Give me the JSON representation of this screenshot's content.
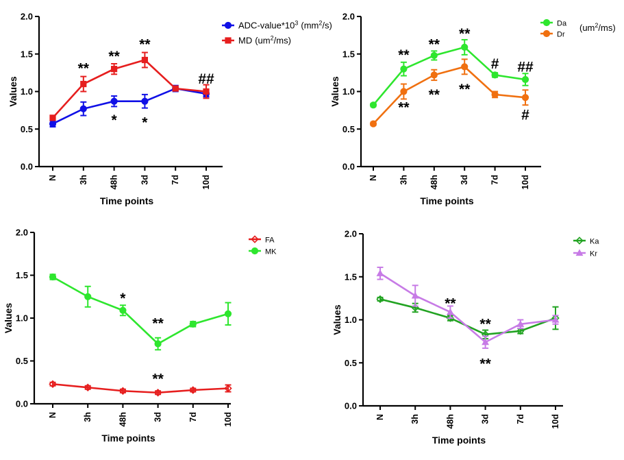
{
  "chart_data": [
    {
      "type": "line",
      "panel": "top-left",
      "categories": [
        "N",
        "3h",
        "48h",
        "3d",
        "7d",
        "10d"
      ],
      "xlabel": "Time points",
      "ylabel": "Values",
      "ylim": [
        0,
        2.0
      ],
      "yticks": [
        "0.0",
        "0.5",
        "1.0",
        "1.5",
        "2.0"
      ],
      "legend_position": "top-right",
      "series": [
        {
          "name": "ADC-value*10",
          "name_sup": "3",
          "name_unit": "(mm",
          "name_unit_sup": "2",
          "name_unit_end": "/s)",
          "marker": "circle",
          "color": "#1010e6",
          "values": [
            0.57,
            0.77,
            0.87,
            0.87,
            1.04,
            0.97
          ],
          "errors": [
            0.04,
            0.09,
            0.07,
            0.09,
            0.04,
            0.04
          ]
        },
        {
          "name": "MD",
          "name_sup": "",
          "name_unit": "(um",
          "name_unit_sup": "2",
          "name_unit_end": "/ms)",
          "marker": "square",
          "color": "#e61e1e",
          "values": [
            0.65,
            1.1,
            1.3,
            1.42,
            1.04,
            1.0
          ],
          "errors": [
            0.03,
            0.1,
            0.07,
            0.1,
            0.03,
            0.09
          ]
        }
      ],
      "annotations": [
        {
          "text": "**",
          "x": "3h",
          "y": 1.32
        },
        {
          "text": "**",
          "x": "48h",
          "y": 1.48
        },
        {
          "text": "**",
          "x": "3d",
          "y": 1.64
        },
        {
          "text": "##",
          "x": "10d",
          "y": 1.18
        },
        {
          "text": "*",
          "x": "48h",
          "y": 0.63
        },
        {
          "text": "*",
          "x": "3d",
          "y": 0.6
        }
      ]
    },
    {
      "type": "line",
      "panel": "top-right",
      "categories": [
        "N",
        "3h",
        "48h",
        "3d",
        "7d",
        "10d"
      ],
      "xlabel": "Time points",
      "ylabel": "Values",
      "ylim": [
        0,
        2.0
      ],
      "yticks": [
        "0.0",
        "0.5",
        "1.0",
        "1.5",
        "2.0"
      ],
      "legend_position": "top-right",
      "legend_unit": "(um",
      "legend_unit_sup": "2",
      "legend_unit_end": "/ms)",
      "series": [
        {
          "name": "Da",
          "marker": "circle",
          "color": "#2ee62e",
          "values": [
            0.82,
            1.3,
            1.48,
            1.59,
            1.22,
            1.16
          ],
          "errors": [
            0.02,
            0.09,
            0.06,
            0.1,
            0.03,
            0.08
          ]
        },
        {
          "name": "Dr",
          "marker": "circle",
          "color": "#f07010",
          "values": [
            0.57,
            1.0,
            1.22,
            1.33,
            0.96,
            0.92
          ],
          "errors": [
            0.02,
            0.1,
            0.07,
            0.1,
            0.04,
            0.1
          ]
        }
      ],
      "annotations": [
        {
          "text": "**",
          "x": "3h",
          "y": 1.5
        },
        {
          "text": "**",
          "x": "48h",
          "y": 1.64
        },
        {
          "text": "**",
          "x": "3d",
          "y": 1.78
        },
        {
          "text": "#",
          "x": "7d",
          "y": 1.38
        },
        {
          "text": "##",
          "x": "10d",
          "y": 1.34
        },
        {
          "text": "**",
          "x": "3h",
          "y": 0.8
        },
        {
          "text": "**",
          "x": "48h",
          "y": 0.97
        },
        {
          "text": "**",
          "x": "3d",
          "y": 1.04
        },
        {
          "text": "#",
          "x": "10d",
          "y": 0.7
        }
      ]
    },
    {
      "type": "line",
      "panel": "bottom-left",
      "categories": [
        "N",
        "3h",
        "48h",
        "3d",
        "7d",
        "10d"
      ],
      "xlabel": "Time points",
      "ylabel": "Values",
      "ylim": [
        0,
        2.0
      ],
      "yticks": [
        "0.0",
        "0.5",
        "1.0",
        "1.5",
        "2.0"
      ],
      "legend_position": "top-right",
      "series": [
        {
          "name": "FA",
          "marker": "diamond",
          "color": "#e61e1e",
          "values": [
            0.23,
            0.19,
            0.15,
            0.13,
            0.16,
            0.18
          ],
          "errors": [
            0.02,
            0.02,
            0.02,
            0.02,
            0.02,
            0.04
          ]
        },
        {
          "name": "MK",
          "marker": "circle",
          "color": "#2ee62e",
          "values": [
            1.48,
            1.25,
            1.09,
            0.7,
            0.93,
            1.05
          ],
          "errors": [
            0.03,
            0.12,
            0.06,
            0.07,
            0.03,
            0.13
          ]
        }
      ],
      "annotations": [
        {
          "text": "*",
          "x": "48h",
          "y": 1.24
        },
        {
          "text": "**",
          "x": "3d",
          "y": 0.95
        },
        {
          "text": "**",
          "x": "3d",
          "y": 0.3
        }
      ]
    },
    {
      "type": "line",
      "panel": "bottom-right",
      "categories": [
        "N",
        "3h",
        "48h",
        "3d",
        "7d",
        "10d"
      ],
      "xlabel": "Time points",
      "ylabel": "Values",
      "ylim": [
        0,
        2.0
      ],
      "yticks": [
        "0.0",
        "0.5",
        "1.0",
        "1.5",
        "2.0"
      ],
      "legend_position": "top-right",
      "series": [
        {
          "name": "Ka",
          "marker": "diamond",
          "color": "#22a322",
          "values": [
            1.24,
            1.14,
            1.02,
            0.83,
            0.87,
            1.02
          ],
          "errors": [
            0.02,
            0.05,
            0.03,
            0.05,
            0.03,
            0.13
          ]
        },
        {
          "name": "Kr",
          "marker": "triangle",
          "color": "#c77be6",
          "values": [
            1.54,
            1.28,
            1.09,
            0.74,
            0.95,
            1.0
          ],
          "errors": [
            0.07,
            0.12,
            0.07,
            0.07,
            0.05,
            0.05
          ]
        }
      ],
      "annotations": [
        {
          "text": "**",
          "x": "48h",
          "y": 1.2
        },
        {
          "text": "**",
          "x": "3d",
          "y": 0.96
        },
        {
          "text": "**",
          "x": "3d",
          "y": 0.5
        }
      ]
    }
  ]
}
